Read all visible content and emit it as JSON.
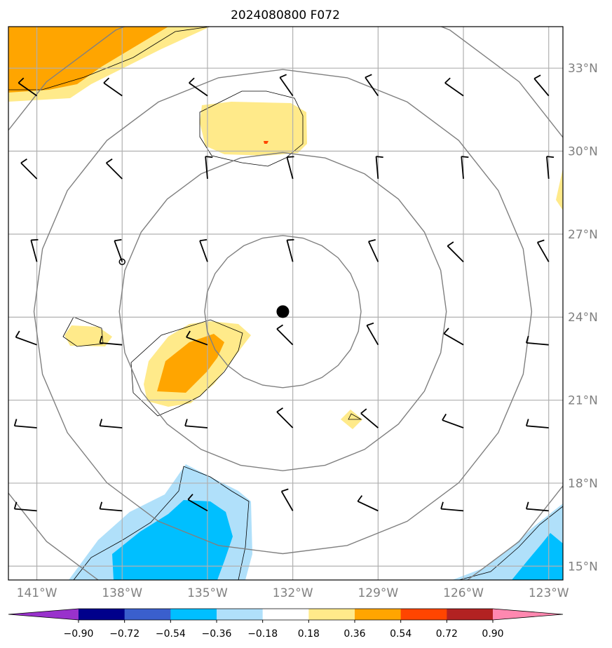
{
  "chart_data": {
    "type": "heatmap",
    "title": "2024080800 F072",
    "map": {
      "lon_range": [
        -142,
        -122.5
      ],
      "lat_range": [
        14.5,
        34.5
      ],
      "lon_ticks": [
        -141,
        -138,
        -135,
        -132,
        -129,
        -126,
        -123
      ],
      "lon_tick_labels": [
        "141°W",
        "138°W",
        "135°W",
        "132°W",
        "129°W",
        "126°W",
        "123°W"
      ],
      "lat_ticks": [
        15,
        18,
        21,
        24,
        27,
        30,
        33
      ],
      "lat_tick_labels": [
        "15°N",
        "18°N",
        "21°N",
        "24°N",
        "27°N",
        "30°N",
        "33°N"
      ],
      "grid": true
    },
    "center_marker": {
      "lon": -132.35,
      "lat": 24.2
    },
    "small_marker": {
      "lon": -138,
      "lat": 26.0
    },
    "range_rings_deg": [
      2.75,
      5.75,
      8.75,
      11.75
    ],
    "fill_colors": {
      "light_yellow": "#ffea8a",
      "orange": "#ffa500",
      "light_blue": "#b0e0fa",
      "deep_sky_blue": "#00bfff",
      "red": "#ff0000"
    },
    "colorbar": {
      "levels": [
        -0.9,
        -0.72,
        -0.54,
        -0.36,
        -0.18,
        0.18,
        0.36,
        0.54,
        0.72,
        0.9
      ],
      "labels": [
        "−0.90",
        "−0.72",
        "−0.54",
        "−0.36",
        "−0.18",
        "0.18",
        "0.36",
        "0.54",
        "0.72",
        "0.90"
      ],
      "colors": [
        "#9932cc",
        "#00008b",
        "#3a5fcd",
        "#00bfff",
        "#b0e0fa",
        "#ffffff",
        "#ffea8a",
        "#ffa500",
        "#ff4500",
        "#b22222",
        "#ff88b0"
      ]
    },
    "wind_barbs": {
      "lons": [
        -141,
        -138,
        -135,
        -132,
        -129,
        -126,
        -123
      ],
      "lats": [
        17,
        20,
        23,
        26,
        29,
        32
      ],
      "directions_deg": [
        [
          275,
          275,
          300,
          330,
          295,
          275,
          275
        ],
        [
          275,
          275,
          275,
          315,
          310,
          290,
          275
        ],
        [
          290,
          275,
          290,
          315,
          330,
          300,
          275
        ],
        [
          345,
          340,
          340,
          345,
          335,
          315,
          330
        ],
        [
          315,
          315,
          355,
          345,
          355,
          355,
          355
        ],
        [
          305,
          305,
          305,
          325,
          325,
          305,
          320
        ]
      ]
    }
  }
}
